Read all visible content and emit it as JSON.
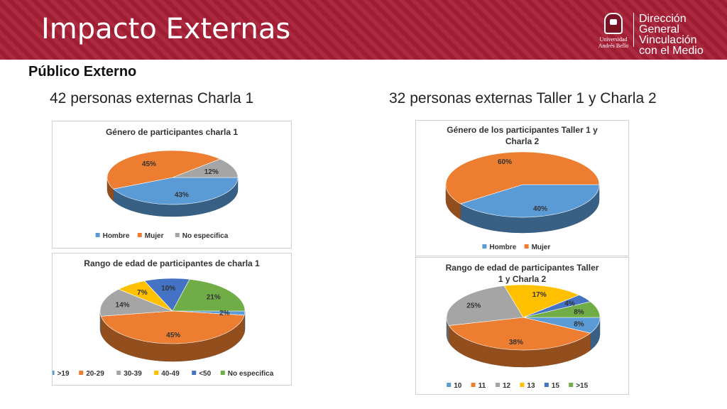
{
  "header": {
    "title": "Impacto Externas",
    "logo_text": "Universidad Andrés Bello",
    "dept_line1": "Dirección General",
    "dept_line2": "Vinculación",
    "dept_line3": "con el Medio"
  },
  "subtitle": "Público Externo",
  "left_heading": "42 personas externas Charla 1",
  "right_heading": "32 personas externas Taller 1 y Charla 2",
  "colors": {
    "banner": "#a81f36",
    "blue": "#5b9bd5",
    "orange": "#ed7d31",
    "gray": "#a5a5a5",
    "yellow": "#ffc000",
    "darkblue": "#4472c4",
    "green": "#70ad47"
  },
  "chart_data": [
    {
      "type": "pie",
      "title": [
        "Género de participantes charla 1"
      ],
      "categories": [
        "Hombre",
        "Mujer",
        "No especifica"
      ],
      "values": [
        43,
        45,
        12
      ],
      "labels": [
        "43%",
        "45%",
        "12%"
      ],
      "colors": [
        "#5b9bd5",
        "#ed7d31",
        "#a5a5a5"
      ],
      "legend_position": "bottom"
    },
    {
      "type": "pie",
      "title": [
        "Rango de edad de participantes de charla 1"
      ],
      "categories": [
        ">19",
        "20-29",
        "30-39",
        "40-49",
        "<50",
        "No especifica"
      ],
      "values": [
        2,
        45,
        14,
        7,
        10,
        21
      ],
      "labels": [
        "2%",
        "45%",
        "14%",
        "7%",
        "10%",
        "21%"
      ],
      "colors": [
        "#5b9bd5",
        "#ed7d31",
        "#a5a5a5",
        "#ffc000",
        "#4472c4",
        "#70ad47"
      ],
      "legend_position": "bottom"
    },
    {
      "type": "pie",
      "title": [
        "Género de los participantes Taller 1 y",
        "Charla 2"
      ],
      "categories": [
        "Hombre",
        "Mujer"
      ],
      "values": [
        40,
        60
      ],
      "labels": [
        "40%",
        "60%"
      ],
      "colors": [
        "#5b9bd5",
        "#ed7d31"
      ],
      "legend_position": "bottom"
    },
    {
      "type": "pie",
      "title": [
        "Rango de edad de participantes Taller",
        "1 y Charla 2"
      ],
      "categories": [
        "10",
        "11",
        "12",
        "13",
        "15",
        ">15"
      ],
      "values": [
        8,
        38,
        25,
        17,
        4,
        8
      ],
      "labels": [
        "8%",
        "38%",
        "25%",
        "17%",
        "4%",
        "8%"
      ],
      "colors": [
        "#5b9bd5",
        "#ed7d31",
        "#a5a5a5",
        "#ffc000",
        "#4472c4",
        "#70ad47"
      ],
      "legend_position": "bottom"
    }
  ]
}
